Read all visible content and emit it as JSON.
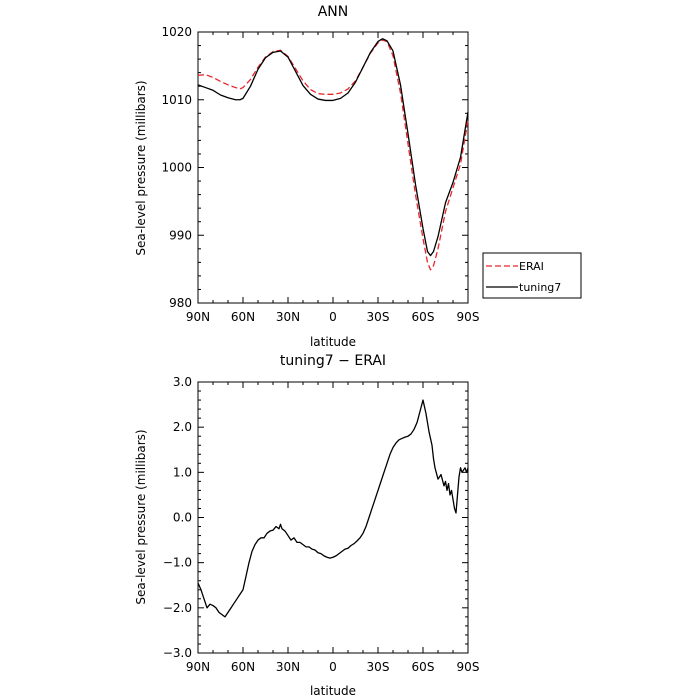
{
  "chart_data": [
    {
      "type": "line",
      "title": "ANN",
      "xlabel": "latitude",
      "ylabel": "Sea-level pressure (millibars)",
      "xlim": [
        90,
        -90
      ],
      "ylim": [
        980,
        1020
      ],
      "x_ticks": [
        90,
        60,
        30,
        0,
        -30,
        -60,
        -90
      ],
      "x_tick_labels": [
        "90N",
        "60N",
        "30N",
        "0",
        "30S",
        "60S",
        "90S"
      ],
      "y_ticks": [
        980,
        990,
        1000,
        1010,
        1020
      ],
      "y_tick_labels": [
        "980",
        "990",
        "1000",
        "1010",
        "1020"
      ],
      "grid": false,
      "legend_position": "right",
      "series": [
        {
          "name": "ERAI",
          "color": "#e8262a",
          "dash": "dashed",
          "x": [
            90,
            85,
            80,
            75,
            70,
            65,
            62,
            60,
            55,
            50,
            45,
            40,
            35,
            30,
            25,
            20,
            15,
            10,
            5,
            0,
            -5,
            -10,
            -15,
            -20,
            -25,
            -30,
            -33,
            -36,
            -40,
            -45,
            -50,
            -55,
            -60,
            -63,
            -65,
            -67,
            -70,
            -75,
            -80,
            -85,
            -90
          ],
          "y": [
            1013.6,
            1013.7,
            1013.3,
            1012.7,
            1012.2,
            1011.8,
            1011.6,
            1011.8,
            1013.0,
            1014.8,
            1016.3,
            1017.1,
            1017.3,
            1016.4,
            1014.6,
            1012.8,
            1011.5,
            1010.9,
            1010.8,
            1010.8,
            1011.0,
            1011.6,
            1012.8,
            1014.8,
            1016.9,
            1018.4,
            1018.8,
            1018.6,
            1016.5,
            1011.0,
            1003.5,
            996.0,
            989.5,
            986.0,
            984.9,
            985.5,
            988.0,
            993.5,
            997.0,
            1000.5,
            1007.0
          ]
        },
        {
          "name": "tuning7",
          "color": "#000000",
          "dash": "solid",
          "x": [
            90,
            85,
            80,
            75,
            70,
            65,
            62,
            60,
            55,
            50,
            45,
            40,
            35,
            30,
            25,
            20,
            15,
            10,
            5,
            0,
            -5,
            -10,
            -15,
            -20,
            -25,
            -30,
            -33,
            -36,
            -40,
            -45,
            -50,
            -55,
            -60,
            -63,
            -65,
            -67,
            -70,
            -75,
            -80,
            -85,
            -90
          ],
          "y": [
            1012.2,
            1011.8,
            1011.4,
            1010.7,
            1010.3,
            1010.0,
            1010.0,
            1010.2,
            1012.0,
            1014.5,
            1016.2,
            1017.0,
            1017.2,
            1016.3,
            1014.2,
            1012.1,
            1010.8,
            1010.1,
            1009.9,
            1009.9,
            1010.2,
            1011.0,
            1012.6,
            1014.8,
            1017.0,
            1018.6,
            1019.0,
            1018.7,
            1017.2,
            1012.2,
            1005.0,
            997.5,
            991.0,
            987.6,
            987.0,
            987.6,
            989.8,
            994.8,
            997.8,
            1001.5,
            1008.2
          ]
        }
      ]
    },
    {
      "type": "line",
      "title": "tuning7 − ERAI",
      "xlabel": "latitude",
      "ylabel": "Sea-level pressure (millibars)",
      "xlim": [
        90,
        -90
      ],
      "ylim": [
        -3.0,
        3.0
      ],
      "x_ticks": [
        90,
        60,
        30,
        0,
        -30,
        -60,
        -90
      ],
      "x_tick_labels": [
        "90N",
        "60N",
        "30N",
        "0",
        "30S",
        "60S",
        "90S"
      ],
      "y_ticks": [
        -3.0,
        -2.0,
        -1.0,
        0.0,
        1.0,
        2.0,
        3.0
      ],
      "y_tick_labels": [
        "−3.0",
        "−2.0",
        "−1.0",
        "0.0",
        "1.0",
        "2.0",
        "3.0"
      ],
      "grid": false,
      "series": [
        {
          "color": "#000000",
          "dash": "solid",
          "x": [
            90,
            88,
            86,
            84,
            82,
            80,
            78,
            76,
            74,
            72,
            71,
            70,
            68,
            66,
            64,
            62,
            60,
            58,
            56,
            54,
            52,
            50,
            48,
            46,
            44,
            42,
            40,
            38,
            36,
            35,
            34,
            32,
            30,
            28,
            26,
            24,
            22,
            20,
            18,
            16,
            14,
            12,
            10,
            8,
            6,
            4,
            2,
            0,
            -2,
            -4,
            -6,
            -8,
            -10,
            -12,
            -14,
            -16,
            -18,
            -20,
            -22,
            -24,
            -26,
            -28,
            -30,
            -32,
            -34,
            -36,
            -38,
            -40,
            -42,
            -44,
            -46,
            -48,
            -50,
            -52,
            -54,
            -56,
            -58,
            -60,
            -62,
            -64,
            -66,
            -67,
            -68,
            -70,
            -72,
            -74,
            -75,
            -76,
            -77,
            -78,
            -79,
            -80,
            -81,
            -82,
            -83,
            -84,
            -85,
            -86,
            -87,
            -88,
            -89,
            -90
          ],
          "y": [
            -1.45,
            -1.6,
            -1.8,
            -2.0,
            -1.92,
            -1.95,
            -2.0,
            -2.1,
            -2.15,
            -2.2,
            -2.15,
            -2.1,
            -2.0,
            -1.9,
            -1.8,
            -1.7,
            -1.6,
            -1.3,
            -1.0,
            -0.75,
            -0.6,
            -0.5,
            -0.45,
            -0.45,
            -0.35,
            -0.3,
            -0.28,
            -0.2,
            -0.25,
            -0.15,
            -0.25,
            -0.3,
            -0.4,
            -0.5,
            -0.45,
            -0.55,
            -0.55,
            -0.6,
            -0.65,
            -0.65,
            -0.7,
            -0.72,
            -0.78,
            -0.8,
            -0.85,
            -0.88,
            -0.9,
            -0.88,
            -0.85,
            -0.8,
            -0.75,
            -0.7,
            -0.68,
            -0.62,
            -0.58,
            -0.52,
            -0.45,
            -0.35,
            -0.2,
            0.0,
            0.2,
            0.4,
            0.6,
            0.8,
            1.0,
            1.2,
            1.4,
            1.55,
            1.65,
            1.72,
            1.75,
            1.78,
            1.8,
            1.85,
            1.95,
            2.1,
            2.35,
            2.6,
            2.3,
            1.9,
            1.6,
            1.3,
            1.1,
            0.85,
            0.95,
            0.7,
            0.8,
            0.6,
            0.75,
            0.5,
            0.6,
            0.4,
            0.2,
            0.1,
            0.5,
            0.9,
            1.1,
            1.0,
            1.05,
            1.1,
            1.0,
            1.1
          ]
        }
      ]
    }
  ]
}
